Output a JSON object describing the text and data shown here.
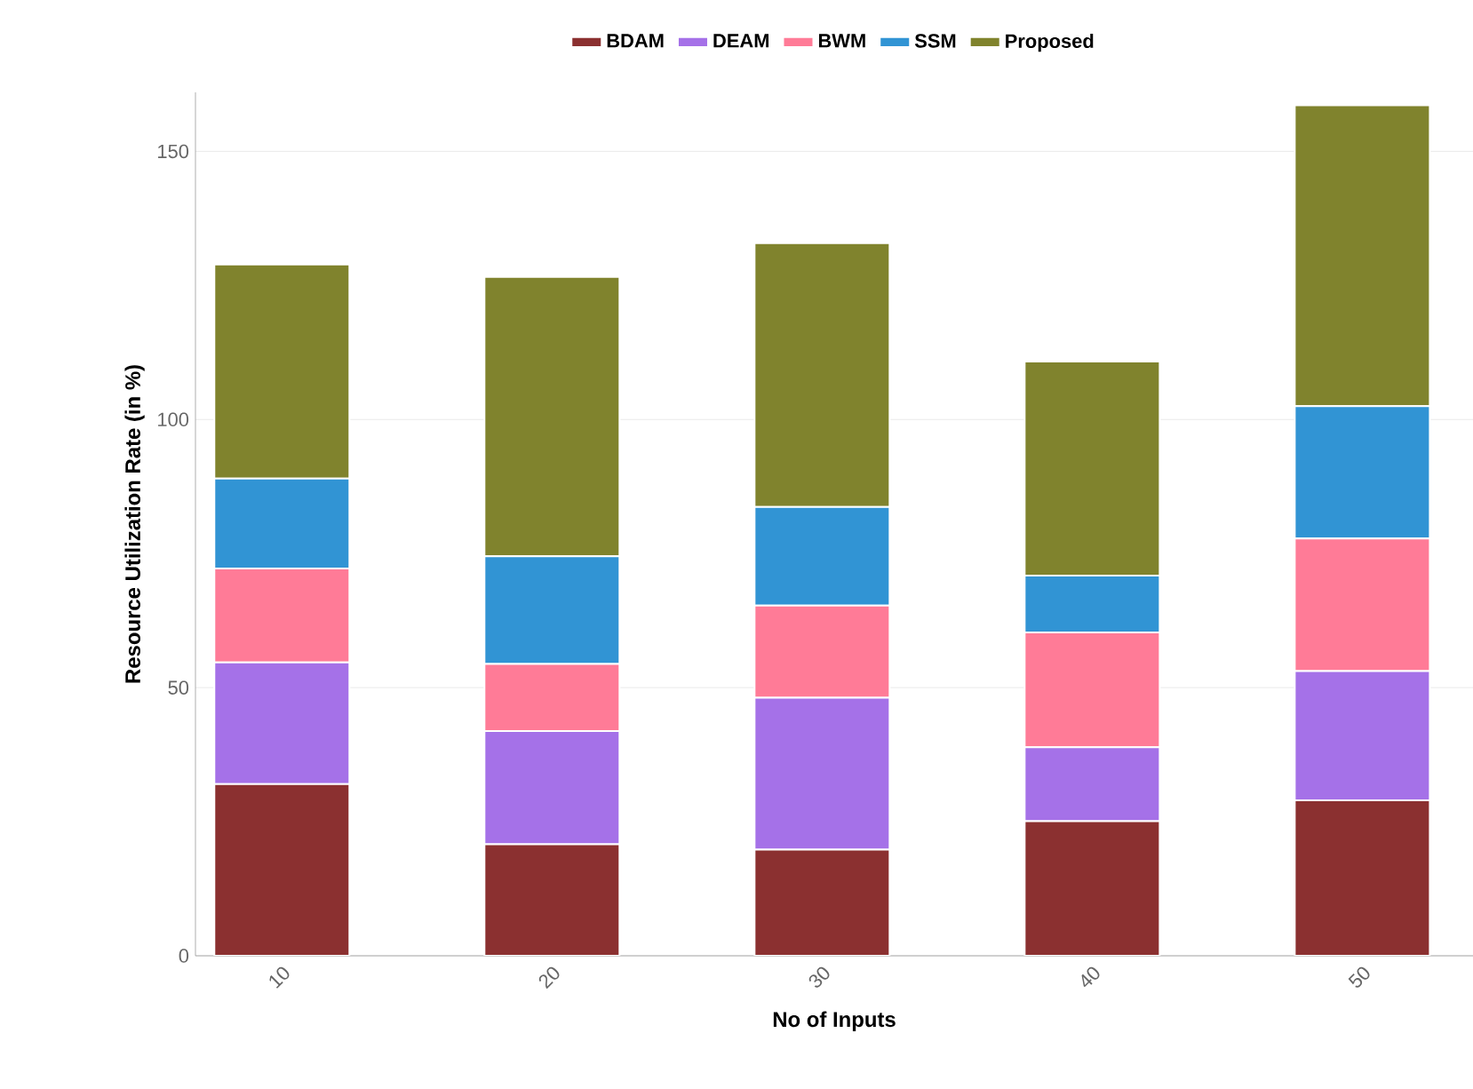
{
  "chart_data": {
    "type": "bar",
    "stacked": true,
    "xlabel": "No of Inputs",
    "ylabel": "Resource Utilization Rate (in %)",
    "categories": [
      "10",
      "20",
      "30",
      "40",
      "50"
    ],
    "series": [
      {
        "name": "BDAM",
        "color": "#8b3030",
        "values": [
          32.0,
          20.8,
          19.8,
          25.1,
          29.0
        ]
      },
      {
        "name": "DEAM",
        "color": "#a571e8",
        "values": [
          22.7,
          21.1,
          28.3,
          13.8,
          24.1
        ]
      },
      {
        "name": "BWM",
        "color": "#ff7b97",
        "values": [
          17.5,
          12.5,
          17.2,
          21.4,
          24.7
        ]
      },
      {
        "name": "SSM",
        "color": "#3194d4",
        "values": [
          16.8,
          20.1,
          18.4,
          10.6,
          24.7
        ]
      },
      {
        "name": "Proposed",
        "color": "#80832d",
        "values": [
          39.9,
          52.1,
          49.2,
          39.9,
          56.1
        ]
      }
    ],
    "ylim": [
      0,
      161
    ],
    "yticks": [
      0,
      50,
      100,
      150
    ],
    "grid": "y",
    "legend": "top"
  }
}
